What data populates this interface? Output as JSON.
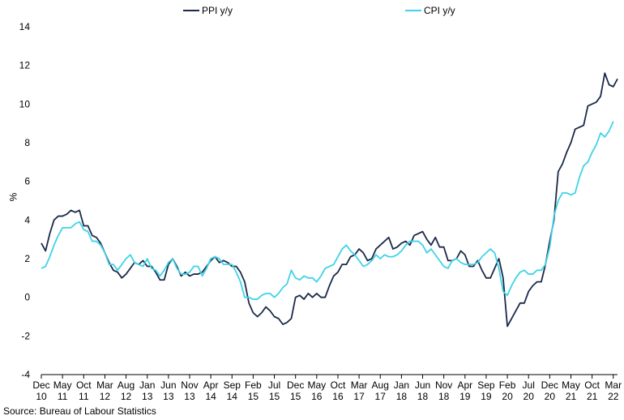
{
  "chart_data": {
    "type": "line",
    "title": "",
    "xlabel": "",
    "ylabel": "%",
    "ylim": [
      -4,
      14
    ],
    "yticks": [
      -4,
      -2,
      0,
      2,
      4,
      6,
      8,
      10,
      12,
      14
    ],
    "grid": false,
    "legend_position": "top",
    "x_start": "Dec 2010",
    "x_tick_labels": [
      {
        "month": "Dec",
        "year": "10",
        "index": 0
      },
      {
        "month": "May",
        "year": "11",
        "index": 5
      },
      {
        "month": "Oct",
        "year": "11",
        "index": 10
      },
      {
        "month": "Mar",
        "year": "12",
        "index": 15
      },
      {
        "month": "Aug",
        "year": "12",
        "index": 20
      },
      {
        "month": "Jan",
        "year": "13",
        "index": 25
      },
      {
        "month": "Jun",
        "year": "13",
        "index": 30
      },
      {
        "month": "Nov",
        "year": "13",
        "index": 35
      },
      {
        "month": "Apr",
        "year": "14",
        "index": 40
      },
      {
        "month": "Sep",
        "year": "14",
        "index": 45
      },
      {
        "month": "Feb",
        "year": "15",
        "index": 50
      },
      {
        "month": "Jul",
        "year": "15",
        "index": 55
      },
      {
        "month": "Dec",
        "year": "15",
        "index": 60
      },
      {
        "month": "May",
        "year": "16",
        "index": 65
      },
      {
        "month": "Oct",
        "year": "16",
        "index": 70
      },
      {
        "month": "Mar",
        "year": "17",
        "index": 75
      },
      {
        "month": "Aug",
        "year": "17",
        "index": 80
      },
      {
        "month": "Jan",
        "year": "18",
        "index": 85
      },
      {
        "month": "Jun",
        "year": "18",
        "index": 90
      },
      {
        "month": "Nov",
        "year": "18",
        "index": 95
      },
      {
        "month": "Apr",
        "year": "19",
        "index": 100
      },
      {
        "month": "Sep",
        "year": "19",
        "index": 105
      },
      {
        "month": "Feb",
        "year": "20",
        "index": 110
      },
      {
        "month": "Jul",
        "year": "20",
        "index": 115
      },
      {
        "month": "Dec",
        "year": "20",
        "index": 120
      },
      {
        "month": "May",
        "year": "21",
        "index": 125
      },
      {
        "month": "Oct",
        "year": "21",
        "index": 130
      },
      {
        "month": "Mar",
        "year": "22",
        "index": 135
      }
    ],
    "series": [
      {
        "name": "PPI y/y",
        "color": "#1b2a4a",
        "values": [
          2.8,
          2.4,
          3.3,
          4.0,
          4.2,
          4.2,
          4.3,
          4.5,
          4.4,
          4.5,
          3.7,
          3.7,
          3.2,
          3.1,
          2.8,
          2.3,
          1.8,
          1.4,
          1.3,
          1.0,
          1.2,
          1.5,
          1.8,
          1.7,
          1.9,
          1.6,
          1.6,
          1.3,
          0.9,
          0.9,
          1.7,
          2.0,
          1.6,
          1.1,
          1.3,
          1.1,
          1.2,
          1.2,
          1.3,
          1.6,
          1.9,
          2.1,
          1.8,
          1.9,
          1.8,
          1.6,
          1.6,
          1.3,
          0.8,
          -0.3,
          -0.8,
          -1.0,
          -0.8,
          -0.5,
          -0.7,
          -1.0,
          -1.1,
          -1.4,
          -1.3,
          -1.1,
          0.0,
          0.1,
          -0.1,
          0.2,
          0.0,
          0.2,
          0.0,
          0.0,
          0.6,
          1.1,
          1.3,
          1.7,
          1.7,
          2.1,
          2.2,
          2.5,
          2.3,
          1.9,
          2.0,
          2.5,
          2.7,
          2.9,
          3.1,
          2.5,
          2.6,
          2.8,
          2.9,
          2.7,
          3.2,
          3.3,
          3.4,
          3.0,
          2.7,
          3.1,
          2.6,
          2.6,
          1.9,
          1.9,
          2.0,
          2.4,
          2.2,
          1.6,
          1.6,
          1.9,
          1.4,
          1.0,
          1.0,
          1.5,
          2.0,
          1.0,
          -1.5,
          -1.1,
          -0.7,
          -0.3,
          -0.3,
          0.3,
          0.6,
          0.8,
          0.8,
          1.7,
          2.9,
          4.0,
          6.5,
          6.9,
          7.5,
          8.0,
          8.7,
          8.8,
          8.9,
          9.9,
          10.0,
          10.1,
          10.4,
          11.6,
          11.0,
          10.9,
          11.3
        ]
      },
      {
        "name": "CPI y/y",
        "color": "#3fd3e8",
        "values": [
          1.5,
          1.6,
          2.1,
          2.7,
          3.2,
          3.6,
          3.6,
          3.6,
          3.8,
          3.9,
          3.5,
          3.4,
          2.9,
          2.9,
          2.7,
          2.3,
          1.7,
          1.7,
          1.4,
          1.7,
          2.0,
          2.2,
          1.8,
          1.7,
          1.6,
          2.0,
          1.5,
          1.4,
          1.1,
          1.4,
          1.8,
          2.0,
          1.5,
          1.2,
          1.2,
          1.3,
          1.6,
          1.6,
          1.1,
          1.5,
          2.0,
          2.1,
          2.0,
          1.7,
          1.7,
          1.7,
          1.3,
          0.8,
          0.0,
          0.0,
          -0.1,
          -0.1,
          0.1,
          0.2,
          0.2,
          0.0,
          0.2,
          0.5,
          0.7,
          1.4,
          1.0,
          0.9,
          1.1,
          1.0,
          1.0,
          0.8,
          1.1,
          1.5,
          1.6,
          1.7,
          2.1,
          2.5,
          2.7,
          2.4,
          2.2,
          1.9,
          1.6,
          1.7,
          1.9,
          2.2,
          2.0,
          2.2,
          2.1,
          2.1,
          2.2,
          2.4,
          2.7,
          2.9,
          2.9,
          2.9,
          2.7,
          2.3,
          2.5,
          2.2,
          1.9,
          1.6,
          1.5,
          1.9,
          2.0,
          1.8,
          1.7,
          1.7,
          1.7,
          1.8,
          2.1,
          2.3,
          2.5,
          2.3,
          1.5,
          0.3,
          0.1,
          0.6,
          1.0,
          1.3,
          1.4,
          1.2,
          1.2,
          1.4,
          1.4,
          1.7,
          2.6,
          4.2,
          5.0,
          5.4,
          5.4,
          5.3,
          5.4,
          6.2,
          6.8,
          7.0,
          7.5,
          7.9,
          8.5,
          8.3,
          8.6,
          9.1
        ]
      }
    ]
  },
  "legend": {
    "ppi_label": "PPI y/y",
    "cpi_label": "CPI y/y"
  },
  "source_note": "Source: Bureau of Labour Statistics"
}
